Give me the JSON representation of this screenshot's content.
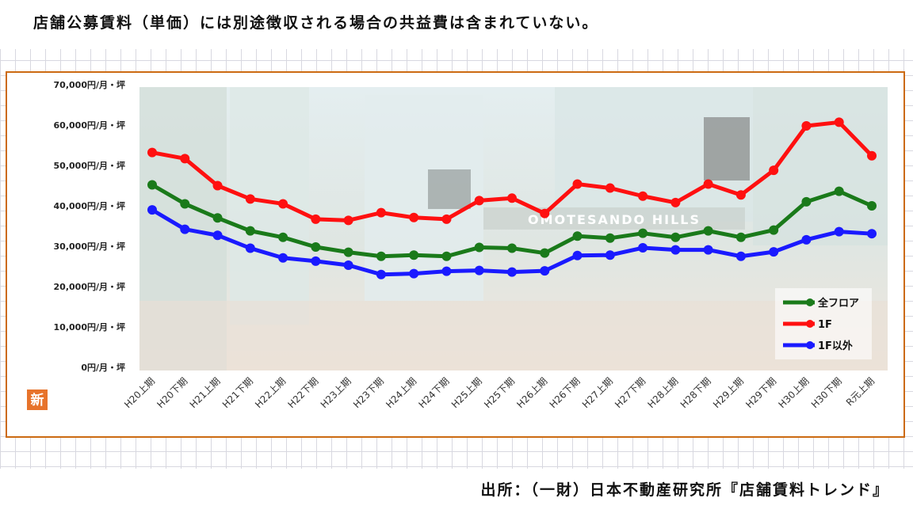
{
  "header": {
    "note": "店舗公募賃料（単価）には別途徴収される場合の共益費は含まれていない。"
  },
  "footer": {
    "source": "出所：（一財）日本不動産研究所『店舗賃料トレンド』"
  },
  "badge": {
    "label": "新"
  },
  "colors": {
    "frame": "#cc6a12",
    "series": [
      "#1a7a1a",
      "#ff1010",
      "#1a1aff"
    ]
  },
  "chart_data": {
    "type": "line",
    "background_photo_caption": "OMOTESANDO HILLS",
    "ylim": [
      0,
      70000
    ],
    "y_ticks": [
      {
        "value": 0,
        "label": "0円/月・坪"
      },
      {
        "value": 10000,
        "label": "10,000円/月・坪"
      },
      {
        "value": 20000,
        "label": "20,000円/月・坪"
      },
      {
        "value": 30000,
        "label": "30,000円/月・坪"
      },
      {
        "value": 40000,
        "label": "40,000円/月・坪"
      },
      {
        "value": 50000,
        "label": "50,000円/月・坪"
      },
      {
        "value": 60000,
        "label": "60,000円/月・坪"
      },
      {
        "value": 70000,
        "label": "70,000円/月・坪"
      }
    ],
    "categories": [
      "H20上期",
      "H20下期",
      "H21上期",
      "H21下期",
      "H22上期",
      "H22下期",
      "H23上期",
      "H23下期",
      "H24上期",
      "H24下期",
      "H25上期",
      "H25下期",
      "H26上期",
      "H26下期",
      "H27上期",
      "H27下期",
      "H28上期",
      "H28下期",
      "H29上期",
      "H29下期",
      "H30上期",
      "H30下期",
      "R元上期"
    ],
    "series": [
      {
        "name": "全フロア",
        "color": "#1a7a1a",
        "values": [
          45200,
          40500,
          37000,
          33800,
          32200,
          29800,
          28500,
          27500,
          27800,
          27500,
          29700,
          29500,
          28300,
          32500,
          32000,
          33200,
          32200,
          33800,
          32200,
          34000,
          41000,
          43600,
          40000
        ]
      },
      {
        "name": "1F",
        "color": "#ff1010",
        "values": [
          53200,
          51700,
          45000,
          41700,
          40500,
          36700,
          36400,
          38300,
          37100,
          36700,
          41300,
          41900,
          38100,
          45400,
          44400,
          42400,
          40800,
          45400,
          42700,
          48800,
          59800,
          60700,
          52400
        ]
      },
      {
        "name": "1F以外",
        "color": "#1a1aff",
        "values": [
          39000,
          34200,
          32700,
          29500,
          27100,
          26300,
          25300,
          23000,
          23200,
          23800,
          24000,
          23600,
          23900,
          27700,
          27800,
          29600,
          29100,
          29100,
          27500,
          28600,
          31600,
          33600,
          33100
        ]
      }
    ],
    "legend_position": "bottom-right",
    "grid": false
  }
}
